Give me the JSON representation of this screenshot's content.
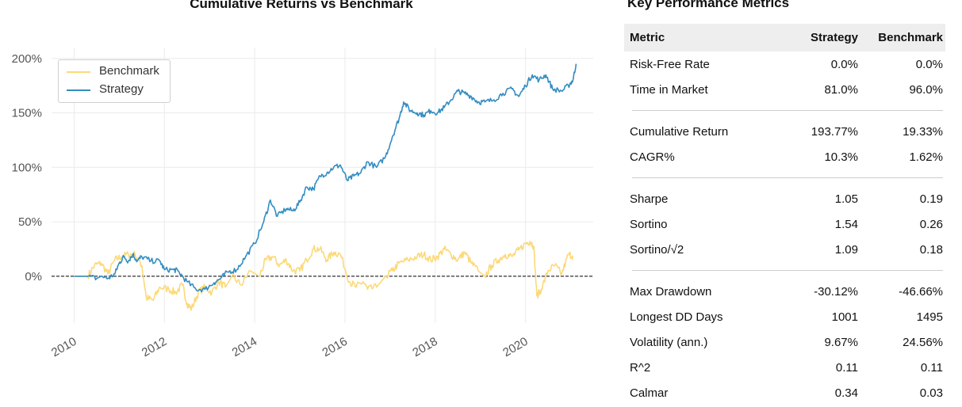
{
  "chart_data": {
    "type": "line",
    "title": "Cumulative Returns vs Benchmark",
    "xlabel": "",
    "ylabel": "",
    "x_range": [
      2009.5,
      2021.5
    ],
    "ylim": [
      -0.43,
      2.1
    ],
    "y_ticks": [
      {
        "value": 0,
        "label": "0%"
      },
      {
        "value": 0.5,
        "label": "50%"
      },
      {
        "value": 1.0,
        "label": "100%"
      },
      {
        "value": 1.5,
        "label": "150%"
      },
      {
        "value": 2.0,
        "label": "200%"
      }
    ],
    "x_ticks": [
      {
        "value": 2010,
        "label": "2010"
      },
      {
        "value": 2012,
        "label": "2012"
      },
      {
        "value": 2014,
        "label": "2014"
      },
      {
        "value": 2016,
        "label": "2016"
      },
      {
        "value": 2018,
        "label": "2018"
      },
      {
        "value": 2020,
        "label": "2020"
      }
    ],
    "grid": true,
    "zero_line": "dashed black",
    "legend_position": "top-left",
    "series": [
      {
        "name": "Benchmark",
        "color": "#fcd978",
        "points": [
          [
            2010.0,
            0.0
          ],
          [
            2010.3,
            0.0
          ],
          [
            2010.45,
            0.1
          ],
          [
            2010.6,
            0.12
          ],
          [
            2010.75,
            0.02
          ],
          [
            2010.9,
            0.15
          ],
          [
            2011.05,
            0.18
          ],
          [
            2011.2,
            0.2
          ],
          [
            2011.35,
            0.2
          ],
          [
            2011.5,
            0.1
          ],
          [
            2011.6,
            -0.2
          ],
          [
            2011.75,
            -0.22
          ],
          [
            2011.9,
            -0.1
          ],
          [
            2012.1,
            -0.12
          ],
          [
            2012.25,
            -0.15
          ],
          [
            2012.4,
            -0.08
          ],
          [
            2012.5,
            -0.25
          ],
          [
            2012.6,
            -0.3
          ],
          [
            2012.75,
            -0.15
          ],
          [
            2012.9,
            -0.1
          ],
          [
            2013.05,
            -0.15
          ],
          [
            2013.2,
            -0.05
          ],
          [
            2013.35,
            -0.1
          ],
          [
            2013.5,
            0.0
          ],
          [
            2013.7,
            -0.08
          ],
          [
            2013.9,
            0.05
          ],
          [
            2014.1,
            0.0
          ],
          [
            2014.25,
            0.15
          ],
          [
            2014.4,
            0.18
          ],
          [
            2014.55,
            0.1
          ],
          [
            2014.7,
            0.15
          ],
          [
            2014.85,
            0.05
          ],
          [
            2015.0,
            0.05
          ],
          [
            2015.15,
            0.15
          ],
          [
            2015.3,
            0.25
          ],
          [
            2015.45,
            0.25
          ],
          [
            2015.6,
            0.15
          ],
          [
            2015.75,
            0.22
          ],
          [
            2015.9,
            0.2
          ],
          [
            2016.1,
            -0.05
          ],
          [
            2016.25,
            -0.1
          ],
          [
            2016.4,
            -0.05
          ],
          [
            2016.5,
            -0.12
          ],
          [
            2016.7,
            -0.1
          ],
          [
            2016.9,
            0.0
          ],
          [
            2017.05,
            0.05
          ],
          [
            2017.2,
            0.12
          ],
          [
            2017.4,
            0.15
          ],
          [
            2017.6,
            0.18
          ],
          [
            2017.75,
            0.2
          ],
          [
            2017.9,
            0.15
          ],
          [
            2018.05,
            0.18
          ],
          [
            2018.2,
            0.25
          ],
          [
            2018.35,
            0.2
          ],
          [
            2018.5,
            0.15
          ],
          [
            2018.65,
            0.22
          ],
          [
            2018.8,
            0.12
          ],
          [
            2018.95,
            0.05
          ],
          [
            2019.1,
            0.0
          ],
          [
            2019.25,
            0.1
          ],
          [
            2019.4,
            0.15
          ],
          [
            2019.55,
            0.2
          ],
          [
            2019.7,
            0.18
          ],
          [
            2019.85,
            0.24
          ],
          [
            2020.0,
            0.3
          ],
          [
            2020.1,
            0.32
          ],
          [
            2020.18,
            0.28
          ],
          [
            2020.25,
            -0.18
          ],
          [
            2020.35,
            -0.12
          ],
          [
            2020.5,
            0.05
          ],
          [
            2020.65,
            0.1
          ],
          [
            2020.8,
            0.02
          ],
          [
            2020.95,
            0.2
          ],
          [
            2021.05,
            0.19
          ]
        ]
      },
      {
        "name": "Strategy",
        "color": "#348dc1",
        "points": [
          [
            2010.0,
            0.0
          ],
          [
            2010.3,
            0.0
          ],
          [
            2010.5,
            -0.02
          ],
          [
            2010.6,
            0.0
          ],
          [
            2010.75,
            -0.02
          ],
          [
            2010.9,
            0.02
          ],
          [
            2011.0,
            0.12
          ],
          [
            2011.1,
            0.18
          ],
          [
            2011.2,
            0.14
          ],
          [
            2011.3,
            0.2
          ],
          [
            2011.4,
            0.14
          ],
          [
            2011.5,
            0.18
          ],
          [
            2011.7,
            0.14
          ],
          [
            2011.9,
            0.14
          ],
          [
            2012.0,
            0.06
          ],
          [
            2012.2,
            0.06
          ],
          [
            2012.3,
            0.05
          ],
          [
            2012.5,
            -0.05
          ],
          [
            2012.7,
            -0.12
          ],
          [
            2012.9,
            -0.12
          ],
          [
            2013.1,
            -0.06
          ],
          [
            2013.25,
            -0.02
          ],
          [
            2013.4,
            0.04
          ],
          [
            2013.6,
            0.06
          ],
          [
            2013.8,
            0.18
          ],
          [
            2014.0,
            0.3
          ],
          [
            2014.2,
            0.5
          ],
          [
            2014.35,
            0.7
          ],
          [
            2014.5,
            0.55
          ],
          [
            2014.7,
            0.62
          ],
          [
            2014.85,
            0.6
          ],
          [
            2015.0,
            0.68
          ],
          [
            2015.15,
            0.82
          ],
          [
            2015.3,
            0.8
          ],
          [
            2015.45,
            0.92
          ],
          [
            2015.6,
            0.95
          ],
          [
            2015.75,
            1.0
          ],
          [
            2015.9,
            1.02
          ],
          [
            2016.05,
            0.88
          ],
          [
            2016.2,
            0.92
          ],
          [
            2016.35,
            0.95
          ],
          [
            2016.5,
            1.05
          ],
          [
            2016.7,
            1.0
          ],
          [
            2016.9,
            1.1
          ],
          [
            2017.05,
            1.28
          ],
          [
            2017.2,
            1.45
          ],
          [
            2017.3,
            1.6
          ],
          [
            2017.45,
            1.52
          ],
          [
            2017.6,
            1.5
          ],
          [
            2017.75,
            1.48
          ],
          [
            2017.9,
            1.52
          ],
          [
            2018.05,
            1.5
          ],
          [
            2018.2,
            1.55
          ],
          [
            2018.35,
            1.62
          ],
          [
            2018.5,
            1.7
          ],
          [
            2018.65,
            1.68
          ],
          [
            2018.8,
            1.65
          ],
          [
            2018.95,
            1.6
          ],
          [
            2019.1,
            1.6
          ],
          [
            2019.3,
            1.62
          ],
          [
            2019.5,
            1.68
          ],
          [
            2019.7,
            1.72
          ],
          [
            2019.85,
            1.65
          ],
          [
            2020.0,
            1.75
          ],
          [
            2020.15,
            1.85
          ],
          [
            2020.3,
            1.8
          ],
          [
            2020.45,
            1.85
          ],
          [
            2020.6,
            1.72
          ],
          [
            2020.8,
            1.7
          ],
          [
            2020.95,
            1.75
          ],
          [
            2021.05,
            1.8
          ],
          [
            2021.12,
            1.95
          ]
        ]
      }
    ]
  },
  "metrics": {
    "title": "Key Performance Metrics",
    "headers": [
      "Metric",
      "Strategy",
      "Benchmark"
    ],
    "groups": [
      [
        [
          "Risk-Free Rate",
          "0.0%",
          "0.0%"
        ],
        [
          "Time in Market",
          "81.0%",
          "96.0%"
        ]
      ],
      [
        [
          "Cumulative Return",
          "193.77%",
          "19.33%"
        ],
        [
          "CAGR%",
          "10.3%",
          "1.62%"
        ]
      ],
      [
        [
          "Sharpe",
          "1.05",
          "0.19"
        ],
        [
          "Sortino",
          "1.54",
          "0.26"
        ],
        [
          "Sortino/√2",
          "1.09",
          "0.18"
        ]
      ],
      [
        [
          "Max Drawdown",
          "-30.12%",
          "-46.66%"
        ],
        [
          "Longest DD Days",
          "1001",
          "1495"
        ],
        [
          "Volatility (ann.)",
          "9.67%",
          "24.56%"
        ],
        [
          "R^2",
          "0.11",
          "0.11"
        ],
        [
          "Calmar",
          "0.34",
          "0.03"
        ]
      ]
    ]
  }
}
